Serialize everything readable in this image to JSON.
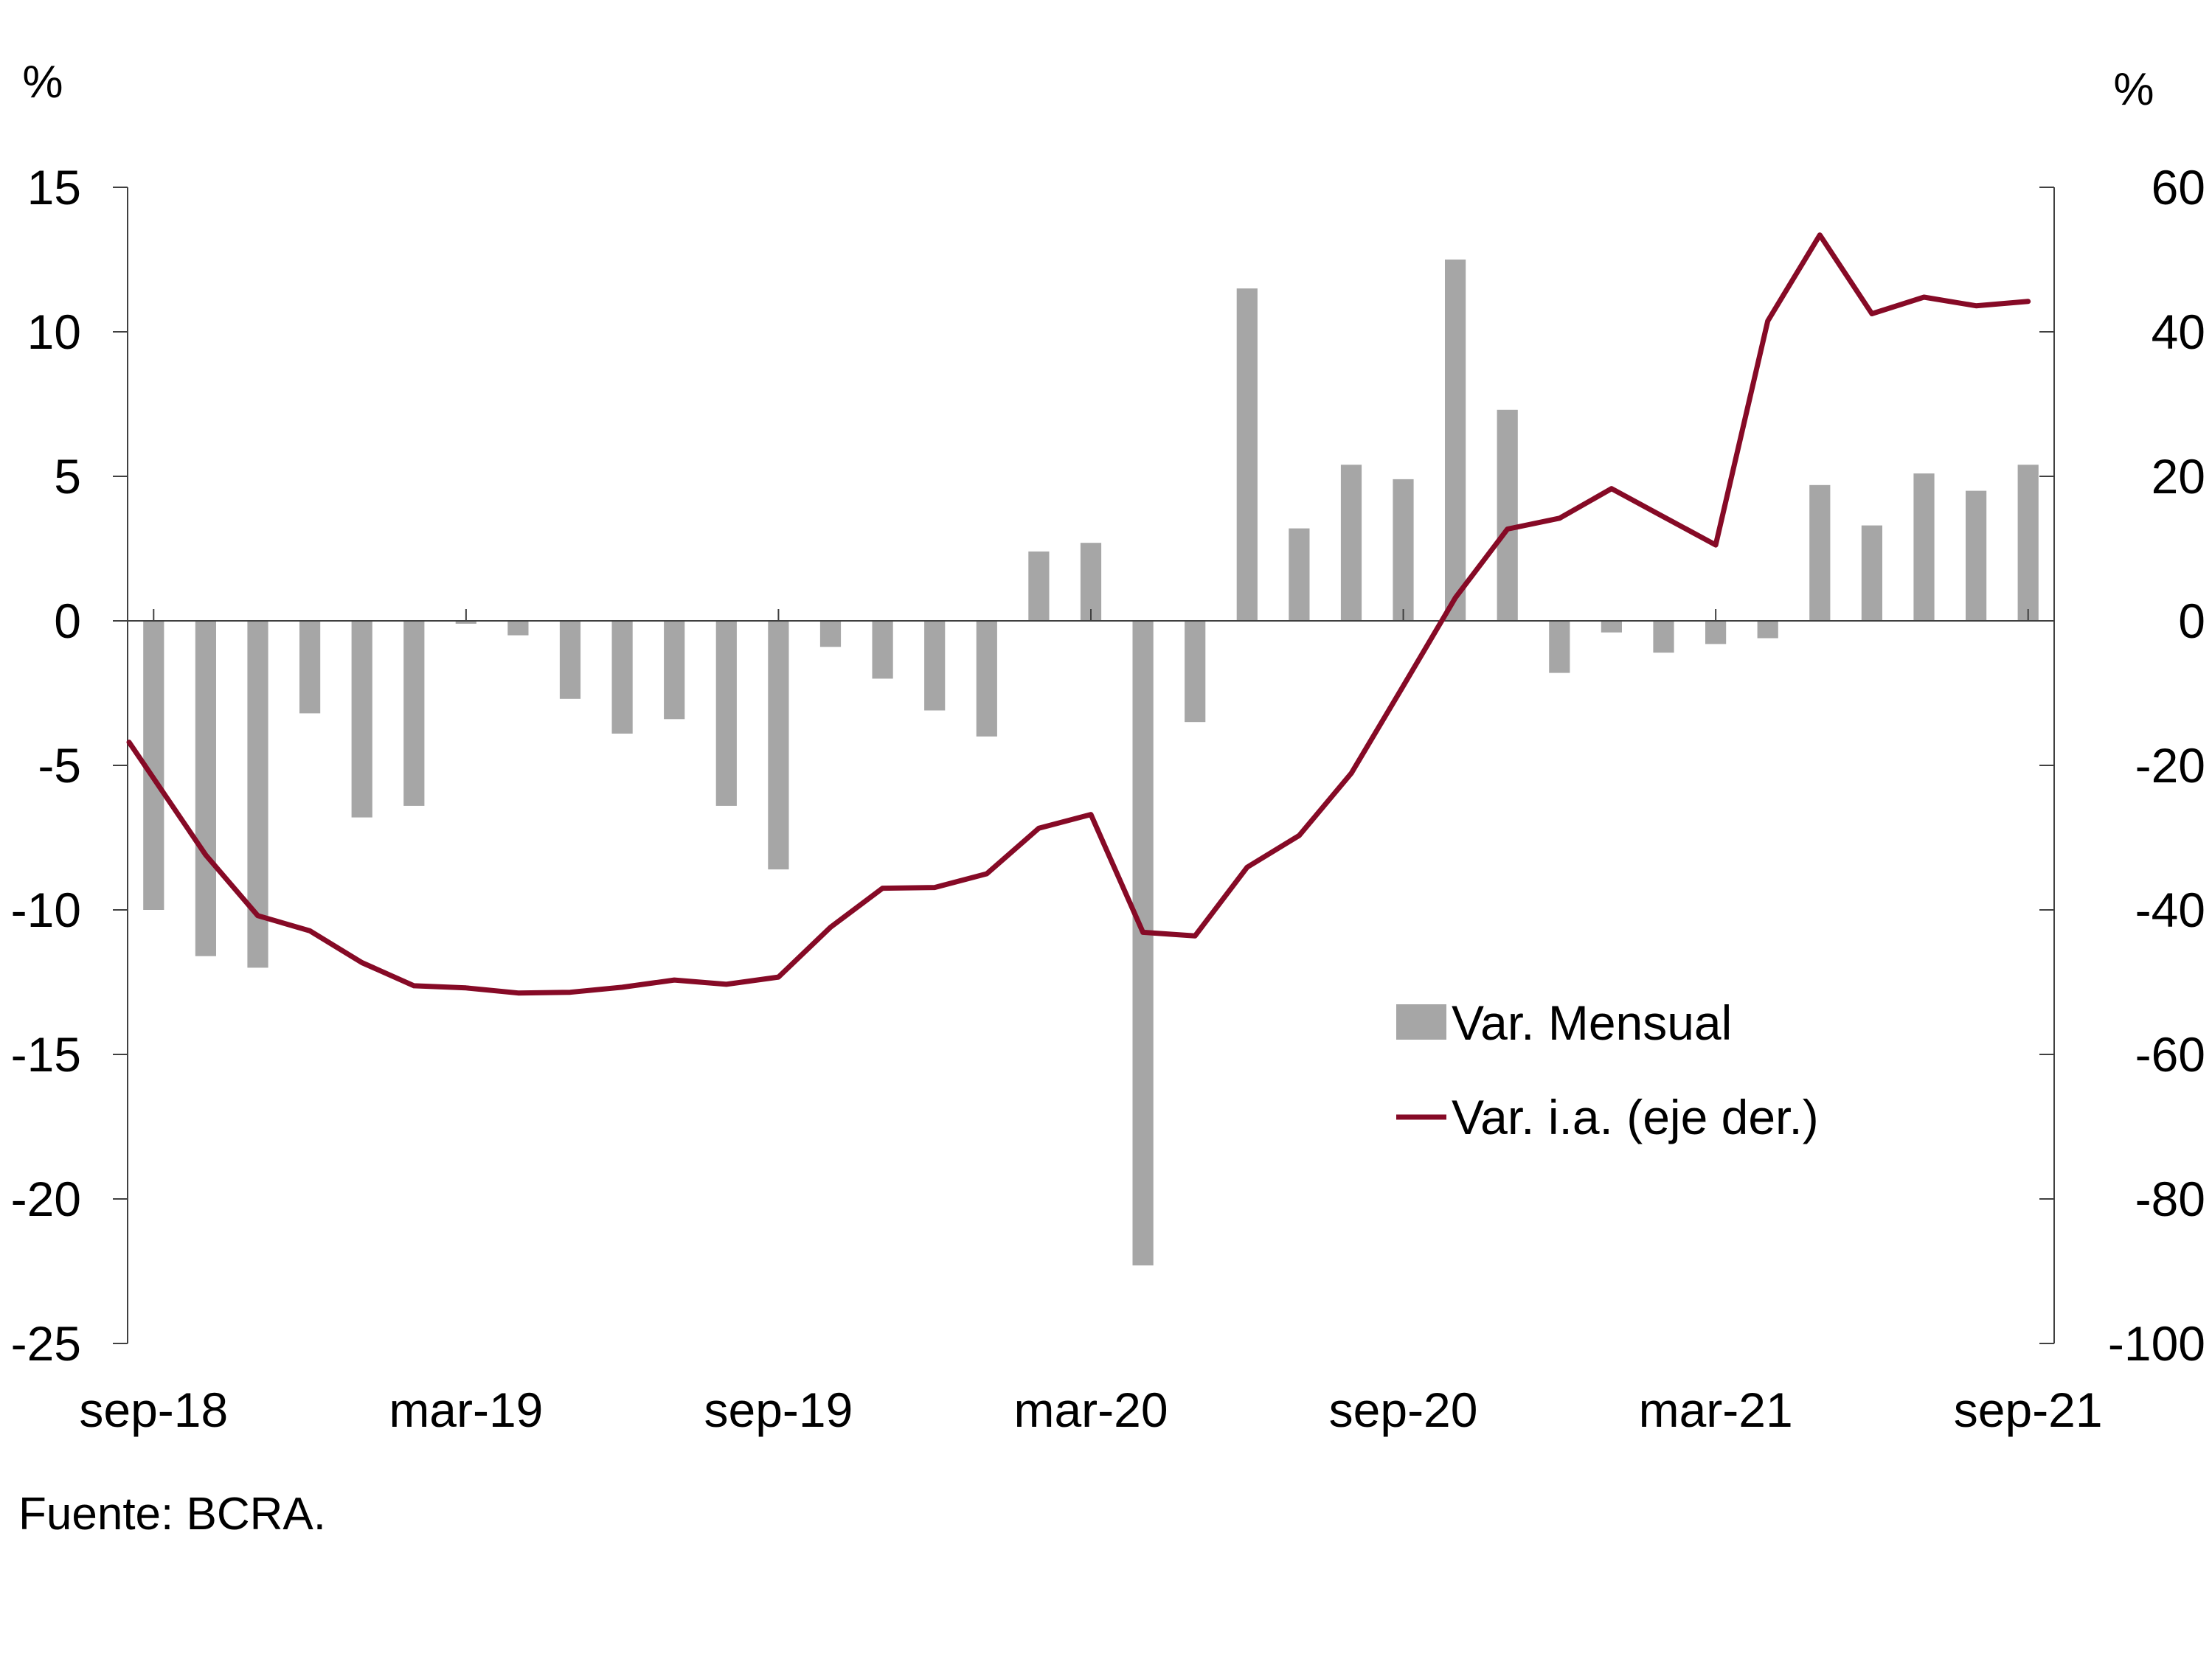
{
  "chart_data": {
    "type": "bar+line",
    "left_axis": {
      "unit": "%",
      "ylim": [
        -25,
        15
      ],
      "ticks": [
        15,
        10,
        5,
        0,
        -5,
        -10,
        -15,
        -20,
        -25
      ]
    },
    "right_axis": {
      "unit": "%",
      "ylim": [
        -100,
        60
      ],
      "ticks": [
        60,
        40,
        20,
        0,
        -20,
        -40,
        -60,
        -80,
        -100
      ]
    },
    "x_tick_labels": [
      "sep-18",
      "mar-19",
      "sep-19",
      "mar-20",
      "sep-20",
      "mar-21",
      "sep-21"
    ],
    "categories": [
      "sep-18",
      "oct-18",
      "nov-18",
      "dic-18",
      "ene-19",
      "feb-19",
      "mar-19",
      "abr-19",
      "may-19",
      "jun-19",
      "jul-19",
      "ago-19",
      "sep-19",
      "oct-19",
      "nov-19",
      "dic-19",
      "ene-20",
      "feb-20",
      "mar-20",
      "abr-20",
      "may-20",
      "jun-20",
      "jul-20",
      "ago-20",
      "sep-20",
      "oct-20",
      "nov-20",
      "dic-20",
      "ene-21",
      "feb-21",
      "mar-21",
      "abr-21",
      "may-21",
      "jun-21",
      "jul-21",
      "ago-21",
      "sep-21"
    ],
    "series": [
      {
        "name": "Var. Mensual",
        "type": "bar",
        "axis": "left",
        "color": "#a6a6a6",
        "values": [
          -10.0,
          -11.6,
          -12.0,
          -3.2,
          -6.8,
          -6.4,
          -0.1,
          -0.5,
          -2.7,
          -3.9,
          -3.4,
          -6.4,
          -8.6,
          -0.9,
          -2.0,
          -3.1,
          -4.0,
          2.4,
          2.7,
          -22.3,
          -3.5,
          11.5,
          3.2,
          5.4,
          4.9,
          12.5,
          7.3,
          -1.8,
          -0.4,
          -1.1,
          -0.8,
          -0.6,
          4.7,
          3.3,
          5.1,
          4.5,
          5.4
        ]
      },
      {
        "name": "Var. i.a. (eje der.)",
        "type": "line",
        "axis": "right",
        "color": "#860a26",
        "values": [
          -16.8,
          -32.4,
          -40.8,
          -42.9,
          -47.3,
          -50.5,
          -50.8,
          -51.5,
          -51.4,
          -50.7,
          -49.7,
          -50.3,
          -49.3,
          -42.4,
          -37.0,
          -36.9,
          -35.0,
          -28.7,
          -26.8,
          -43.1,
          -43.6,
          -34.1,
          -29.7,
          -21.1,
          -9.0,
          3.2,
          12.7,
          14.2,
          18.3,
          14.4,
          10.5,
          41.5,
          53.4,
          42.5,
          44.8,
          43.6,
          44.2
        ]
      }
    ],
    "legend": {
      "placement": "right-center",
      "items": [
        "Var. Mensual",
        "Var. i.a. (eje der.)"
      ]
    },
    "grid": false,
    "source": "Fuente: BCRA."
  }
}
